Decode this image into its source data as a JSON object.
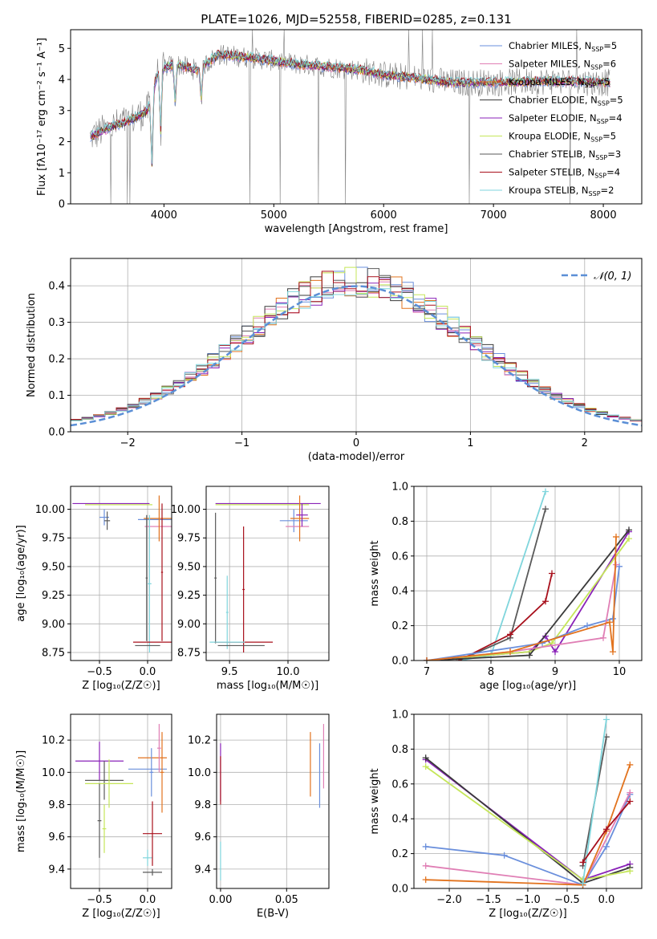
{
  "colors": {
    "chabrier_miles": "#6a8fdc",
    "salpeter_miles": "#e07fb5",
    "kroupa_miles": "#e2731e",
    "chabrier_elodie": "#3a3a3a",
    "salpeter_elodie": "#8a22b8",
    "kroupa_elodie": "#c5e659",
    "chabrier_stelib": "#5a5a5a",
    "salpeter_stelib": "#a8101c",
    "kroupa_stelib": "#7fd5dc",
    "spectrum": "#808080",
    "normal_curve": "#5b8fd6",
    "grid": "#b0b0b0"
  },
  "chart_data": [
    {
      "id": "spectrum",
      "type": "line",
      "title": "PLATE=1026, MJD=52558, FIBERID=0285, z=0.131",
      "xlabel": "wavelength [Angstrom, rest frame]",
      "ylabel": "Flux [fλ10⁻¹⁷ erg cm⁻² s⁻¹ A⁻¹]",
      "xlim": [
        3150,
        8350
      ],
      "ylim": [
        0,
        5.6
      ],
      "xticks": [
        4000,
        5000,
        6000,
        7000,
        8000
      ],
      "yticks": [
        0,
        1,
        2,
        3,
        4,
        5
      ],
      "grid": false,
      "legend_position": "right",
      "legend": [
        {
          "label": "Chabrier MILES, N",
          "sub": "SSP",
          "suffix": "=5",
          "color_key": "chabrier_miles"
        },
        {
          "label": "Salpeter MILES, N",
          "sub": "SSP",
          "suffix": "=6",
          "color_key": "salpeter_miles"
        },
        {
          "label": "Kroupa MILES, N",
          "sub": "SSP",
          "suffix": "=5",
          "color_key": "kroupa_miles"
        },
        {
          "label": "Chabrier ELODIE, N",
          "sub": "SSP",
          "suffix": "=5",
          "color_key": "chabrier_elodie"
        },
        {
          "label": "Salpeter ELODIE, N",
          "sub": "SSP",
          "suffix": "=4",
          "color_key": "salpeter_elodie"
        },
        {
          "label": "Kroupa ELODIE, N",
          "sub": "SSP",
          "suffix": "=5",
          "color_key": "kroupa_elodie"
        },
        {
          "label": "Chabrier STELIB, N",
          "sub": "SSP",
          "suffix": "=3",
          "color_key": "chabrier_stelib"
        },
        {
          "label": "Salpeter STELIB, N",
          "sub": "SSP",
          "suffix": "=4",
          "color_key": "salpeter_stelib"
        },
        {
          "label": "Kroupa STELIB, N",
          "sub": "SSP",
          "suffix": "=2",
          "color_key": "kroupa_stelib"
        }
      ],
      "continuum_anchors": [
        [
          3330,
          2.15
        ],
        [
          3500,
          2.45
        ],
        [
          3700,
          2.7
        ],
        [
          3850,
          3.0
        ],
        [
          3950,
          4.3
        ],
        [
          4100,
          4.5
        ],
        [
          4300,
          4.3
        ],
        [
          4500,
          4.8
        ],
        [
          4800,
          4.7
        ],
        [
          5000,
          4.6
        ],
        [
          5200,
          4.5
        ],
        [
          5500,
          4.4
        ],
        [
          5800,
          4.3
        ],
        [
          6000,
          4.15
        ],
        [
          6300,
          4.05
        ],
        [
          6600,
          3.9
        ],
        [
          7000,
          3.9
        ],
        [
          7500,
          3.95
        ],
        [
          8000,
          3.9
        ],
        [
          8060,
          3.9
        ]
      ]
    },
    {
      "id": "residuals",
      "type": "line",
      "xlabel": "(data-model)/error",
      "ylabel": "Normed distribution",
      "xlim": [
        -2.5,
        2.5
      ],
      "ylim": [
        0,
        0.475
      ],
      "xticks": [
        -2,
        -1,
        0,
        1,
        2
      ],
      "yticks": [
        0.0,
        0.1,
        0.2,
        0.3,
        0.4
      ],
      "grid": true,
      "legend_position": "top-right",
      "legend": [
        {
          "label": "𝒩(0, 1)",
          "color_key": "normal_curve"
        }
      ],
      "bin_width": 0.1
    },
    {
      "id": "age_vs_z",
      "type": "scatter",
      "xlabel": "Z [log₁₀(Z/Z☉)]",
      "ylabel": "age  [log₁₀(age/yr)]",
      "xlim": [
        -0.8,
        0.25
      ],
      "ylim": [
        8.68,
        10.2
      ],
      "xticks": [
        -0.5,
        0.0
      ],
      "yticks": [
        8.75,
        9.0,
        9.25,
        9.5,
        9.75,
        10.0
      ],
      "grid": true,
      "points": [
        {
          "color_key": "salpeter_elodie",
          "x": -0.38,
          "xerr": 0.4,
          "y": 10.05,
          "yerr": 0.0
        },
        {
          "color_key": "kroupa_elodie",
          "x": -0.3,
          "xerr": 0.35,
          "y": 10.04,
          "yerr": 0.0
        },
        {
          "color_key": "chabrier_miles",
          "x": -0.45,
          "xerr": 0.05,
          "y": 9.93,
          "yerr": 0.07
        },
        {
          "color_key": "chabrier_stelib",
          "x": -0.42,
          "xerr": 0.03,
          "y": 9.9,
          "yerr": 0.08
        },
        {
          "color_key": "chabrier_miles",
          "x": 0.1,
          "xerr": 0.2,
          "y": 9.91,
          "yerr": 0.0
        },
        {
          "color_key": "salpeter_miles",
          "x": 0.12,
          "xerr": 0.15,
          "y": 9.85,
          "yerr": 0.0
        },
        {
          "color_key": "kroupa_miles",
          "x": 0.12,
          "xerr": 0.16,
          "y": 9.92,
          "yerr": 0.2
        },
        {
          "color_key": "chabrier_stelib",
          "x": -0.01,
          "xerr": 0.01,
          "y": 9.4,
          "yerr": 0.55
        },
        {
          "color_key": "kroupa_stelib",
          "x": 0.02,
          "xerr": 0.02,
          "y": 9.35,
          "yerr": 0.6
        },
        {
          "color_key": "salpeter_stelib",
          "x": 0.15,
          "xerr": 0.01,
          "y": 9.45,
          "yerr": 0.6
        },
        {
          "color_key": "salpeter_stelib",
          "x": 0.05,
          "xerr": 0.2,
          "y": 8.84,
          "yerr": 0.0
        },
        {
          "color_key": "chabrier_stelib",
          "x": 0.0,
          "xerr": 0.13,
          "y": 8.81,
          "yerr": 0.0
        }
      ]
    },
    {
      "id": "age_vs_mass",
      "type": "scatter",
      "xlabel": "mass [log₁₀(M/M☉)]",
      "ylabel": "",
      "xlim": [
        9.3,
        10.35
      ],
      "ylim": [
        8.68,
        10.2
      ],
      "xticks": [
        9.5,
        10.0
      ],
      "yticks": [
        8.75,
        9.0,
        9.25,
        9.5,
        9.75,
        10.0
      ],
      "grid": true,
      "points": [
        {
          "color_key": "salpeter_elodie",
          "x": 9.83,
          "xerr": 0.45,
          "y": 10.05,
          "yerr": 0.0
        },
        {
          "color_key": "kroupa_elodie",
          "x": 9.78,
          "xerr": 0.4,
          "y": 10.04,
          "yerr": 0.0
        },
        {
          "color_key": "chabrier_miles",
          "x": 10.05,
          "xerr": 0.12,
          "y": 9.9,
          "yerr": 0.1
        },
        {
          "color_key": "salpeter_miles",
          "x": 10.08,
          "xerr": 0.1,
          "y": 9.85,
          "yerr": 0.0
        },
        {
          "color_key": "kroupa_miles",
          "x": 10.1,
          "xerr": 0.08,
          "y": 9.92,
          "yerr": 0.2
        },
        {
          "color_key": "salpeter_elodie",
          "x": 10.12,
          "xerr": 0.05,
          "y": 9.95,
          "yerr": 0.1
        },
        {
          "color_key": "chabrier_stelib",
          "x": 9.38,
          "xerr": 0.01,
          "y": 9.4,
          "yerr": 0.57
        },
        {
          "color_key": "kroupa_stelib",
          "x": 9.48,
          "xerr": 0.01,
          "y": 9.1,
          "yerr": 0.32
        },
        {
          "color_key": "salpeter_stelib",
          "x": 9.62,
          "xerr": 0.01,
          "y": 9.3,
          "yerr": 0.55
        },
        {
          "color_key": "salpeter_stelib",
          "x": 9.62,
          "xerr": 0.25,
          "y": 8.84,
          "yerr": 0.0
        },
        {
          "color_key": "chabrier_stelib",
          "x": 9.6,
          "xerr": 0.2,
          "y": 8.81,
          "yerr": 0.0
        },
        {
          "color_key": "kroupa_stelib",
          "x": 9.48,
          "xerr": 0.15,
          "y": 8.84,
          "yerr": 0.0
        }
      ]
    },
    {
      "id": "massweight_vs_age",
      "type": "line",
      "xlabel": "age  [log₁₀(age/yr)]",
      "ylabel": "mass weight",
      "xlim": [
        6.8,
        10.35
      ],
      "ylim": [
        0,
        1.0
      ],
      "xticks": [
        7,
        8,
        9,
        10
      ],
      "yticks": [
        0.0,
        0.2,
        0.4,
        0.6,
        0.8,
        1.0
      ],
      "grid": true,
      "series": [
        {
          "color_key": "kroupa_stelib",
          "x": [
            7.5,
            8.0,
            8.85
          ],
          "y": [
            0.0,
            0.03,
            0.97
          ]
        },
        {
          "color_key": "chabrier_stelib",
          "x": [
            7.5,
            8.3,
            8.85
          ],
          "y": [
            0.0,
            0.13,
            0.87
          ]
        },
        {
          "color_key": "salpeter_stelib",
          "x": [
            7.5,
            8.3,
            8.85,
            8.95
          ],
          "y": [
            0.0,
            0.15,
            0.34,
            0.5
          ]
        },
        {
          "color_key": "salpeter_elodie",
          "x": [
            7.0,
            8.6,
            8.85,
            9.0,
            10.15
          ],
          "y": [
            0.0,
            0.05,
            0.14,
            0.05,
            0.74
          ]
        },
        {
          "color_key": "kroupa_elodie",
          "x": [
            7.0,
            8.6,
            8.95,
            10.15
          ],
          "y": [
            0.0,
            0.05,
            0.1,
            0.7
          ]
        },
        {
          "color_key": "chabrier_elodie",
          "x": [
            7.0,
            8.6,
            10.15
          ],
          "y": [
            0.0,
            0.03,
            0.75
          ]
        },
        {
          "color_key": "chabrier_miles",
          "x": [
            7.0,
            8.8,
            9.5,
            9.9,
            10.0
          ],
          "y": [
            0.0,
            0.1,
            0.2,
            0.24,
            0.54
          ]
        },
        {
          "color_key": "salpeter_miles",
          "x": [
            7.0,
            8.3,
            9.75,
            9.95
          ],
          "y": [
            0.0,
            0.05,
            0.13,
            0.55
          ]
        },
        {
          "color_key": "kroupa_miles",
          "x": [
            7.0,
            8.3,
            9.85,
            9.9,
            9.95
          ],
          "y": [
            0.0,
            0.05,
            0.22,
            0.05,
            0.71
          ]
        }
      ]
    },
    {
      "id": "mass_vs_z",
      "type": "scatter",
      "xlabel": "Z [log₁₀(Z/Z☉)]",
      "ylabel": "mass [log₁₀(M/M☉)]",
      "xlim": [
        -0.8,
        0.25
      ],
      "ylim": [
        9.28,
        10.36
      ],
      "xticks": [
        -0.5,
        0.0
      ],
      "yticks": [
        9.4,
        9.6,
        9.8,
        10.0,
        10.2
      ],
      "grid": true,
      "points": [
        {
          "color_key": "salpeter_elodie",
          "x": -0.5,
          "xerr": 0.25,
          "y": 10.07,
          "yerr": 0.12
        },
        {
          "color_key": "chabrier_stelib",
          "x": -0.45,
          "xerr": 0.2,
          "y": 9.95,
          "yerr": 0.12
        },
        {
          "color_key": "kroupa_elodie",
          "x": -0.4,
          "xerr": 0.25,
          "y": 9.93,
          "yerr": 0.15
        },
        {
          "color_key": "chabrier_stelib",
          "x": -0.5,
          "xerr": 0.02,
          "y": 9.7,
          "yerr": 0.23
        },
        {
          "color_key": "kroupa_elodie",
          "x": -0.45,
          "xerr": 0.02,
          "y": 9.65,
          "yerr": 0.15
        },
        {
          "color_key": "kroupa_miles",
          "x": 0.05,
          "xerr": 0.15,
          "y": 10.09,
          "yerr": 0.0
        },
        {
          "color_key": "chabrier_miles",
          "x": 0.0,
          "xerr": 0.2,
          "y": 10.02,
          "yerr": 0.0
        },
        {
          "color_key": "salpeter_miles",
          "x": 0.12,
          "xerr": 0.02,
          "y": 10.15,
          "yerr": 0.15
        },
        {
          "color_key": "kroupa_miles",
          "x": 0.15,
          "xerr": 0.02,
          "y": 10.0,
          "yerr": 0.25
        },
        {
          "color_key": "chabrier_miles",
          "x": 0.04,
          "xerr": 0.02,
          "y": 10.0,
          "yerr": 0.15
        },
        {
          "color_key": "kroupa_stelib",
          "x": 0.0,
          "xerr": 0.05,
          "y": 9.47,
          "yerr": 0.05
        },
        {
          "color_key": "salpeter_stelib",
          "x": 0.05,
          "xerr": 0.1,
          "y": 9.62,
          "yerr": 0.2
        },
        {
          "color_key": "chabrier_stelib",
          "x": 0.05,
          "xerr": 0.1,
          "y": 9.38,
          "yerr": 0.02
        }
      ]
    },
    {
      "id": "mass_vs_ebv",
      "type": "scatter",
      "xlabel": "E(B-V)",
      "ylabel": "",
      "xlim": [
        -0.003,
        0.082
      ],
      "ylim": [
        9.28,
        10.36
      ],
      "xticks": [
        0.0,
        0.05
      ],
      "yticks": [
        9.4,
        9.6,
        9.8,
        10.0,
        10.2
      ],
      "grid": true,
      "points": [
        {
          "color_key": "salpeter_elodie",
          "x": 0.0,
          "xerr": 0.0,
          "y": 10.0,
          "yerr": 0.18
        },
        {
          "color_key": "salpeter_stelib",
          "x": 0.0,
          "xerr": 0.0,
          "y": 9.95,
          "yerr": 0.15
        },
        {
          "color_key": "kroupa_stelib",
          "x": 0.0,
          "xerr": 0.0,
          "y": 9.45,
          "yerr": 0.12
        },
        {
          "color_key": "kroupa_miles",
          "x": 0.068,
          "xerr": 0.0,
          "y": 10.05,
          "yerr": 0.2
        },
        {
          "color_key": "chabrier_miles",
          "x": 0.075,
          "xerr": 0.0,
          "y": 9.98,
          "yerr": 0.2
        },
        {
          "color_key": "salpeter_miles",
          "x": 0.078,
          "xerr": 0.0,
          "y": 10.1,
          "yerr": 0.2
        }
      ]
    },
    {
      "id": "massweight_vs_z",
      "type": "line",
      "xlabel": "Z [log₁₀(Z/Z☉)]",
      "ylabel": "mass weight",
      "xlim": [
        -2.45,
        0.45
      ],
      "ylim": [
        0,
        1.0
      ],
      "xticks": [
        -2.0,
        -1.5,
        -1.0,
        -0.5,
        0.0
      ],
      "yticks": [
        0.0,
        0.2,
        0.4,
        0.6,
        0.8,
        1.0
      ],
      "grid": true,
      "series": [
        {
          "color_key": "salpeter_elodie",
          "x": [
            -2.3,
            -0.3,
            0.3
          ],
          "y": [
            0.74,
            0.05,
            0.14
          ]
        },
        {
          "color_key": "chabrier_elodie",
          "x": [
            -2.3,
            -0.3,
            0.3
          ],
          "y": [
            0.75,
            0.03,
            0.12
          ]
        },
        {
          "color_key": "kroupa_elodie",
          "x": [
            -2.3,
            -0.3,
            0.3
          ],
          "y": [
            0.7,
            0.05,
            0.1
          ]
        },
        {
          "color_key": "chabrier_miles",
          "x": [
            -2.3,
            -1.3,
            -0.3,
            0.0,
            0.3
          ],
          "y": [
            0.24,
            0.19,
            0.02,
            0.24,
            0.54
          ]
        },
        {
          "color_key": "salpeter_miles",
          "x": [
            -2.3,
            -0.3,
            0.3
          ],
          "y": [
            0.13,
            0.02,
            0.55
          ]
        },
        {
          "color_key": "kroupa_miles",
          "x": [
            -2.3,
            -0.3,
            0.0,
            0.3
          ],
          "y": [
            0.05,
            0.02,
            0.33,
            0.71
          ]
        },
        {
          "color_key": "chabrier_stelib",
          "x": [
            -0.3,
            0.0
          ],
          "y": [
            0.13,
            0.87
          ]
        },
        {
          "color_key": "kroupa_stelib",
          "x": [
            -0.3,
            0.0
          ],
          "y": [
            0.03,
            0.97
          ]
        },
        {
          "color_key": "salpeter_stelib",
          "x": [
            -0.3,
            0.0,
            0.3
          ],
          "y": [
            0.15,
            0.34,
            0.5
          ]
        }
      ]
    }
  ]
}
